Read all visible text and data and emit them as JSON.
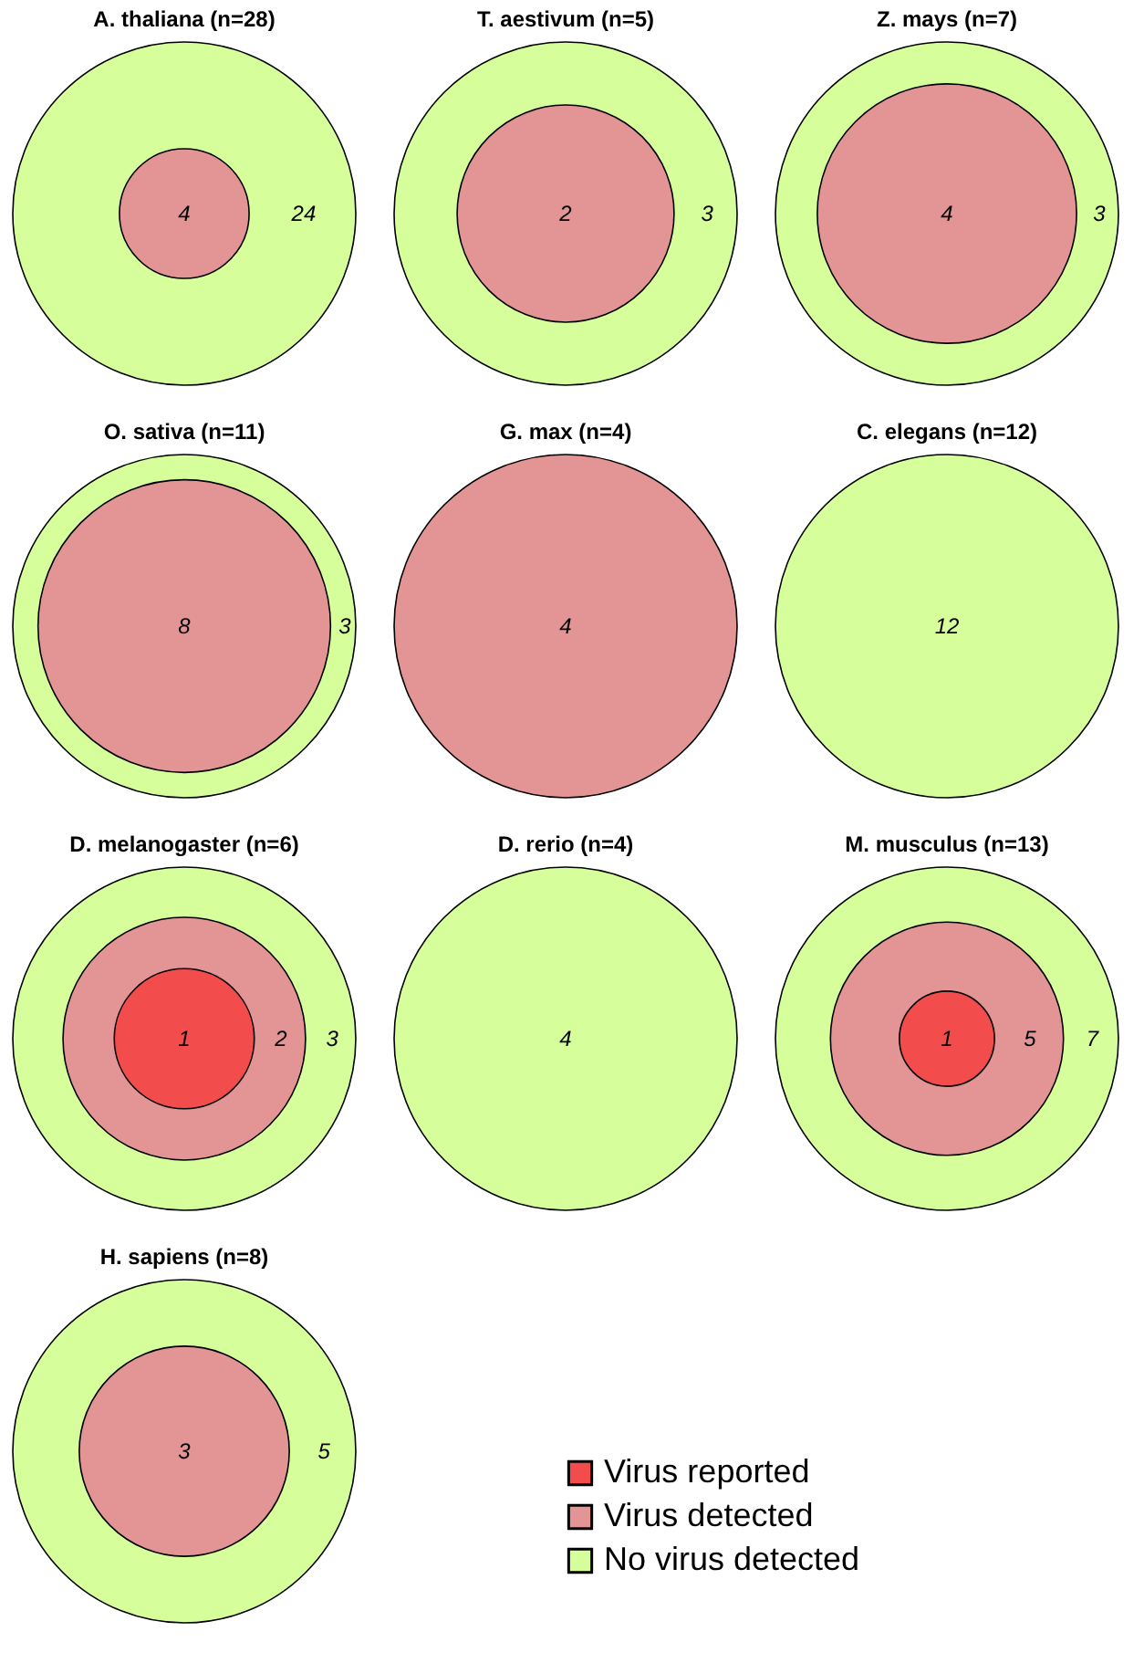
{
  "chart_data": [
    {
      "type": "other",
      "title": "A. thaliana (n=28)",
      "values": [
        null,
        4,
        24
      ],
      "colors": [
        null,
        "#e39494",
        "#d6ff9c"
      ],
      "data_labels": true
    },
    {
      "type": "other",
      "title": "T. aestivum (n=5)",
      "values": [
        null,
        2,
        3
      ],
      "colors": [
        null,
        "#e39494",
        "#d6ff9c"
      ],
      "data_labels": true
    },
    {
      "type": "other",
      "title": "Z. mays (n=7)",
      "values": [
        null,
        4,
        3
      ],
      "colors": [
        null,
        "#e39494",
        "#d6ff9c"
      ],
      "data_labels": true
    },
    {
      "type": "other",
      "title": "O. sativa (n=11)",
      "values": [
        null,
        8,
        3
      ],
      "colors": [
        null,
        "#e39494",
        "#d6ff9c"
      ],
      "data_labels": true
    },
    {
      "type": "other",
      "title": "G. max (n=4)",
      "values": [
        null,
        4,
        null
      ],
      "colors": [
        null,
        "#e39494",
        null
      ],
      "data_labels": true
    },
    {
      "type": "other",
      "title": "C. elegans (n=12)",
      "values": [
        null,
        null,
        12
      ],
      "colors": [
        null,
        null,
        "#d6ff9c"
      ],
      "data_labels": true
    },
    {
      "type": "other",
      "title": "D. melanogaster (n=6)",
      "values": [
        1,
        2,
        3
      ],
      "colors": [
        "#f24c4c",
        "#e39494",
        "#d6ff9c"
      ],
      "data_labels": true
    },
    {
      "type": "other",
      "title": "D. rerio (n=4)",
      "values": [
        null,
        null,
        4
      ],
      "colors": [
        null,
        null,
        "#d6ff9c"
      ],
      "data_labels": true
    },
    {
      "type": "other",
      "title": "M. musculus (n=13)",
      "values": [
        1,
        5,
        7
      ],
      "colors": [
        "#f24c4c",
        "#e39494",
        "#d6ff9c"
      ],
      "data_labels": true
    },
    {
      "type": "other",
      "title": "H. sapiens (n=8)",
      "values": [
        null,
        3,
        5
      ],
      "colors": [
        null,
        "#e39494",
        "#d6ff9c"
      ],
      "data_labels": true
    },
    {
      "type": "other",
      "categories": [
        "Virus reported",
        "Virus detected",
        "No virus detected"
      ],
      "colors": [
        "#f24c4c",
        "#e39494",
        "#d6ff9c"
      ]
    }
  ]
}
